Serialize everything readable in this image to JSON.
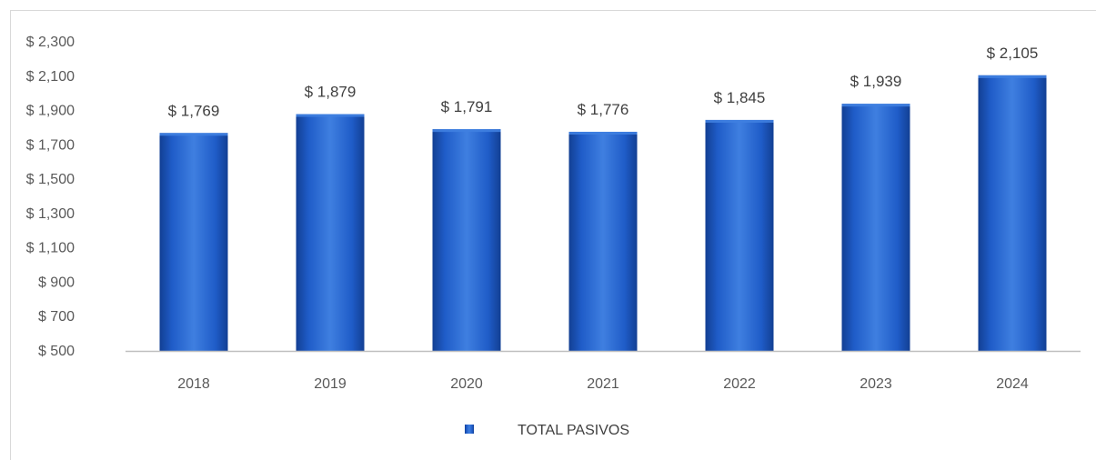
{
  "chart_data": {
    "type": "bar",
    "categories": [
      "2018",
      "2019",
      "2020",
      "2021",
      "2022",
      "2023",
      "2024"
    ],
    "series": [
      {
        "name": "TOTAL PASIVOS",
        "values": [
          1769,
          1879,
          1791,
          1776,
          1845,
          1939,
          2105
        ],
        "data_labels": [
          "$ 1,769",
          "$ 1,879",
          "$ 1,791",
          "$ 1,776",
          "$ 1,845",
          "$ 1,939",
          "$ 2,105"
        ]
      }
    ],
    "ylim": [
      500,
      2300
    ],
    "y_ticks": [
      500,
      700,
      900,
      1100,
      1300,
      1500,
      1700,
      1900,
      2100,
      2300
    ],
    "y_tick_labels": [
      "$ 500",
      "$ 700",
      "$ 900",
      "$ 1,100",
      "$ 1,300",
      "$ 1,500",
      "$ 1,700",
      "$ 1,900",
      "$ 2,100",
      "$ 2,300"
    ],
    "title": "",
    "xlabel": "",
    "ylabel": "",
    "grid": false,
    "legend_position": "bottom-center",
    "colors": {
      "bar_light": "#3f7fe0",
      "bar_mid": "#1f5cc8",
      "bar_dark": "#123f93",
      "axis": "#bfbfbf"
    }
  }
}
